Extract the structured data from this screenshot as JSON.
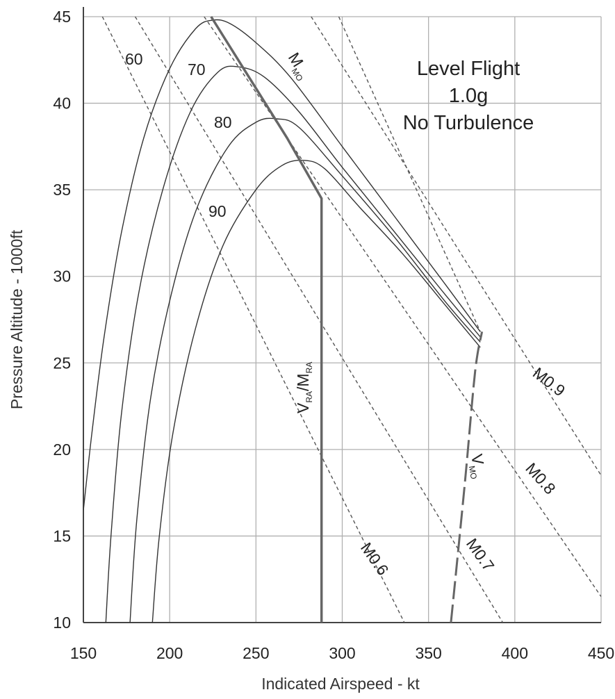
{
  "chart_data": {
    "type": "line",
    "xlabel": "Indicated Airspeed - kt",
    "ylabel": "Pressure Altitude - 1000ft",
    "xlim": [
      150,
      450
    ],
    "ylim": [
      10,
      45
    ],
    "x_ticks": [
      "150",
      "200",
      "250",
      "300",
      "350",
      "400",
      "450"
    ],
    "y_ticks": [
      "10",
      "15",
      "20",
      "25",
      "30",
      "35",
      "40",
      "45"
    ],
    "grid": true,
    "annotation_lines": [
      "Level Flight",
      "1.0g",
      "No Turbulence"
    ],
    "weight_curves": [
      {
        "label": "60",
        "points": [
          [
            150,
            16.5
          ],
          [
            155,
            21
          ],
          [
            162,
            26.5
          ],
          [
            172,
            32.5
          ],
          [
            185,
            38
          ],
          [
            200,
            42
          ],
          [
            215,
            44.3
          ],
          [
            225,
            44.8
          ],
          [
            235,
            44.6
          ],
          [
            250,
            43.5
          ],
          [
            270,
            41.5
          ],
          [
            300,
            37.5
          ],
          [
            330,
            33.5
          ],
          [
            360,
            29.5
          ],
          [
            380,
            26.8
          ]
        ]
      },
      {
        "label": "70",
        "points": [
          [
            163,
            10
          ],
          [
            166,
            15
          ],
          [
            172,
            22
          ],
          [
            182,
            29
          ],
          [
            196,
            35
          ],
          [
            212,
            39.5
          ],
          [
            228,
            41.8
          ],
          [
            240,
            42.1
          ],
          [
            255,
            41.5
          ],
          [
            275,
            39.5
          ],
          [
            300,
            36.3
          ],
          [
            330,
            32.6
          ],
          [
            360,
            28.9
          ],
          [
            380,
            26.5
          ]
        ]
      },
      {
        "label": "80",
        "points": [
          [
            177,
            10
          ],
          [
            181,
            16
          ],
          [
            189,
            23
          ],
          [
            201,
            29
          ],
          [
            216,
            34
          ],
          [
            234,
            37.5
          ],
          [
            250,
            38.9
          ],
          [
            262,
            39.1
          ],
          [
            275,
            38.6
          ],
          [
            300,
            35.8
          ],
          [
            330,
            32.3
          ],
          [
            360,
            28.5
          ],
          [
            380,
            26.2
          ]
        ]
      },
      {
        "label": "90",
        "points": [
          [
            190,
            10
          ],
          [
            194,
            15
          ],
          [
            202,
            21
          ],
          [
            215,
            27
          ],
          [
            231,
            31.8
          ],
          [
            250,
            35
          ],
          [
            265,
            36.4
          ],
          [
            278,
            36.7
          ],
          [
            290,
            36.2
          ],
          [
            310,
            34
          ],
          [
            335,
            31.3
          ],
          [
            360,
            28.3
          ],
          [
            380,
            25.9
          ]
        ]
      }
    ],
    "mach_lines": [
      {
        "label": "MMO",
        "points": [
          [
            298,
            45
          ],
          [
            380,
            26.8
          ]
        ]
      },
      {
        "label": "M0.9",
        "points": [
          [
            282,
            45
          ],
          [
            450,
            18.5
          ]
        ]
      },
      {
        "label": "M0.8",
        "points": [
          [
            220,
            45
          ],
          [
            450,
            11.5
          ]
        ]
      },
      {
        "label": "M0.7",
        "points": [
          [
            180,
            45
          ],
          [
            393,
            10
          ]
        ]
      },
      {
        "label": "M0.6",
        "points": [
          [
            161,
            45
          ],
          [
            336,
            10
          ]
        ]
      }
    ],
    "limit_lines": [
      {
        "label": "VRA/MRA",
        "points": [
          [
            224,
            45
          ],
          [
            246,
            41.5
          ],
          [
            268,
            38
          ],
          [
            288,
            34.5
          ],
          [
            288,
            10
          ]
        ]
      },
      {
        "label": "VMO",
        "points": [
          [
            363,
            10
          ],
          [
            371,
            18
          ],
          [
            377,
            24.5
          ],
          [
            381,
            26.8
          ]
        ]
      }
    ]
  }
}
